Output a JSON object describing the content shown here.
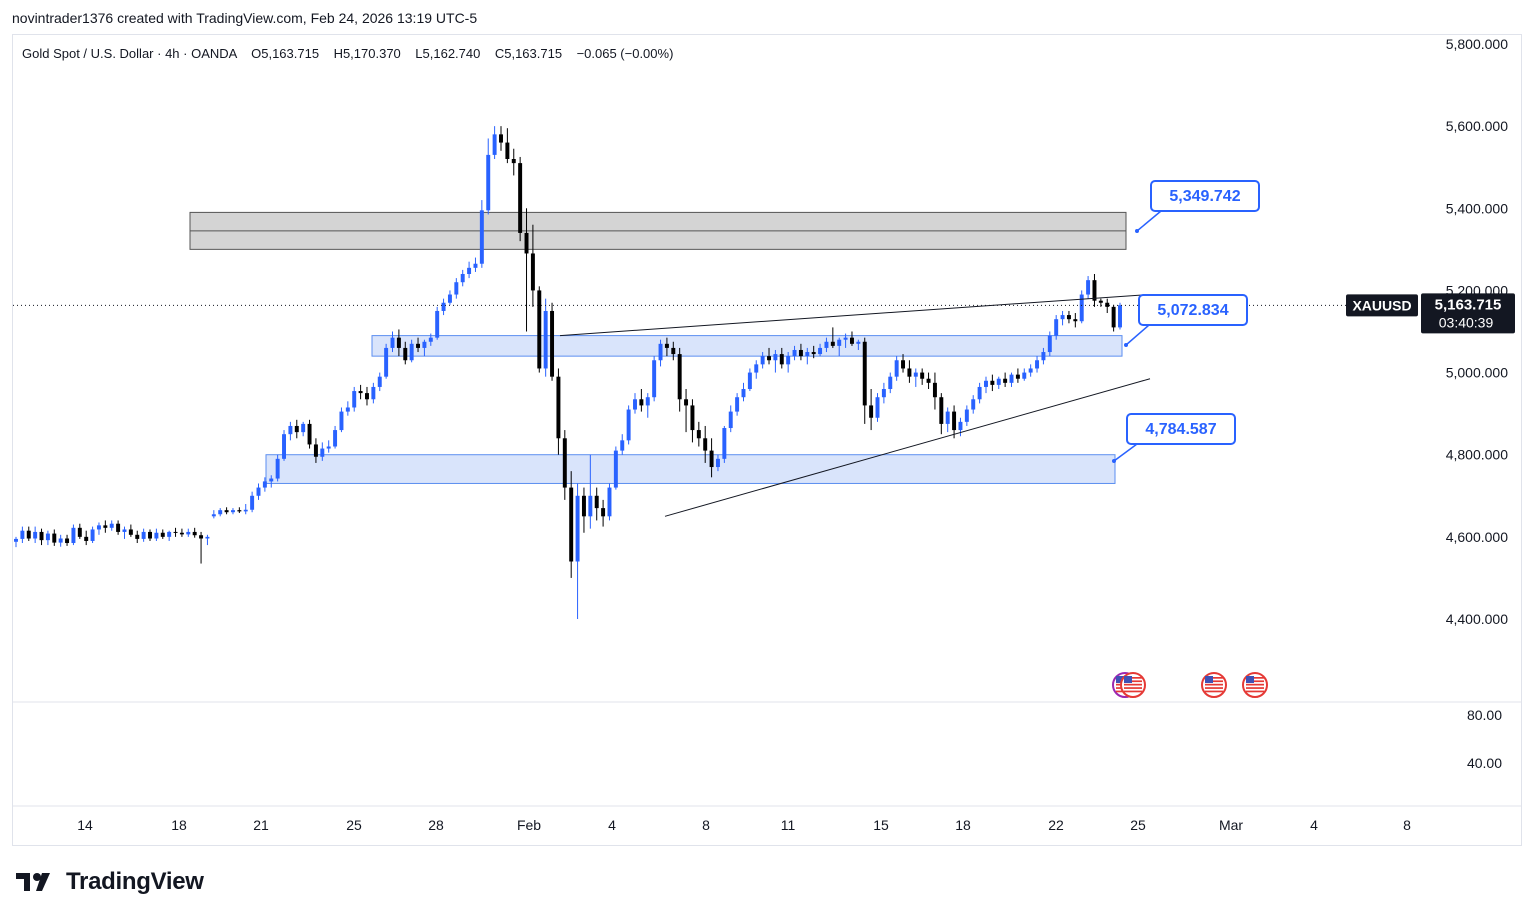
{
  "header": {
    "credit": "novintrader1376 created with TradingView.com, Feb 24, 2026 13:19 UTC-5"
  },
  "legend": {
    "symbol_name": "Gold Spot / U.S. Dollar",
    "interval": "4h",
    "exchange": "OANDA",
    "open": "O5,163.715",
    "high": "H5,170.370",
    "low": "L5,162.740",
    "close": "C5,163.715",
    "change": "−0.065 (−0.00%)"
  },
  "price_axis": {
    "labels": [
      "5,800.000",
      "5,600.000",
      "5,400.000",
      "5,200.000",
      "5,000.000",
      "4,800.000",
      "4,600.000",
      "4,400.000"
    ],
    "ticker": "XAUUSD",
    "last_price": "5,163.715",
    "countdown": "03:40:39"
  },
  "indicator_axis": {
    "labels": [
      "80.00",
      "40.00"
    ]
  },
  "time_axis": {
    "labels": [
      "14",
      "18",
      "21",
      "25",
      "28",
      "Feb",
      "4",
      "8",
      "11",
      "15",
      "18",
      "22",
      "25",
      "Mar",
      "4",
      "8"
    ]
  },
  "annotations": {
    "callouts": [
      "5,349.742",
      "5,072.834",
      "4,784.587"
    ]
  },
  "colors": {
    "up": "#2962ff",
    "down": "#000000",
    "zone_fill": "#d9e4fb",
    "zone_border": "#5b8ef0",
    "resistance_fill": "#d4d4d4",
    "callout_border": "#2962ff",
    "callout_text": "#2962ff"
  },
  "brand": {
    "name": "TradingView"
  },
  "chart_data": {
    "type": "candlestick",
    "symbol": "XAUUSD",
    "interval": "4h",
    "ylim": [
      4300,
      5800
    ],
    "candles": [
      {
        "o": 4588,
        "h": 4600,
        "l": 4575,
        "c": 4595
      },
      {
        "o": 4595,
        "h": 4625,
        "l": 4585,
        "c": 4615
      },
      {
        "o": 4615,
        "h": 4625,
        "l": 4590,
        "c": 4596
      },
      {
        "o": 4596,
        "h": 4625,
        "l": 4585,
        "c": 4612
      },
      {
        "o": 4612,
        "h": 4620,
        "l": 4580,
        "c": 4592
      },
      {
        "o": 4592,
        "h": 4615,
        "l": 4580,
        "c": 4608
      },
      {
        "o": 4608,
        "h": 4618,
        "l": 4578,
        "c": 4586
      },
      {
        "o": 4586,
        "h": 4605,
        "l": 4576,
        "c": 4596
      },
      {
        "o": 4596,
        "h": 4605,
        "l": 4578,
        "c": 4585
      },
      {
        "o": 4585,
        "h": 4630,
        "l": 4580,
        "c": 4622
      },
      {
        "o": 4622,
        "h": 4632,
        "l": 4595,
        "c": 4600
      },
      {
        "o": 4600,
        "h": 4615,
        "l": 4580,
        "c": 4590
      },
      {
        "o": 4590,
        "h": 4625,
        "l": 4585,
        "c": 4618
      },
      {
        "o": 4618,
        "h": 4635,
        "l": 4605,
        "c": 4628
      },
      {
        "o": 4628,
        "h": 4640,
        "l": 4610,
        "c": 4622
      },
      {
        "o": 4622,
        "h": 4640,
        "l": 4615,
        "c": 4632
      },
      {
        "o": 4632,
        "h": 4640,
        "l": 4605,
        "c": 4612
      },
      {
        "o": 4612,
        "h": 4625,
        "l": 4595,
        "c": 4618
      },
      {
        "o": 4618,
        "h": 4630,
        "l": 4600,
        "c": 4605
      },
      {
        "o": 4605,
        "h": 4615,
        "l": 4585,
        "c": 4595
      },
      {
        "o": 4595,
        "h": 4620,
        "l": 4588,
        "c": 4612
      },
      {
        "o": 4612,
        "h": 4618,
        "l": 4590,
        "c": 4596
      },
      {
        "o": 4596,
        "h": 4620,
        "l": 4590,
        "c": 4610
      },
      {
        "o": 4610,
        "h": 4618,
        "l": 4595,
        "c": 4600
      },
      {
        "o": 4600,
        "h": 4615,
        "l": 4590,
        "c": 4612
      },
      {
        "o": 4612,
        "h": 4622,
        "l": 4600,
        "c": 4610
      },
      {
        "o": 4610,
        "h": 4620,
        "l": 4600,
        "c": 4606
      },
      {
        "o": 4606,
        "h": 4620,
        "l": 4600,
        "c": 4612
      },
      {
        "o": 4612,
        "h": 4622,
        "l": 4598,
        "c": 4604
      },
      {
        "o": 4604,
        "h": 4612,
        "l": 4535,
        "c": 4596
      },
      {
        "o": 4596,
        "h": 4605,
        "l": 4580,
        "c": 4600
      },
      {
        "o": 4650,
        "h": 4665,
        "l": 4645,
        "c": 4655
      },
      {
        "o": 4655,
        "h": 4670,
        "l": 4650,
        "c": 4665
      },
      {
        "o": 4665,
        "h": 4672,
        "l": 4655,
        "c": 4660
      },
      {
        "o": 4660,
        "h": 4670,
        "l": 4655,
        "c": 4665
      },
      {
        "o": 4665,
        "h": 4672,
        "l": 4658,
        "c": 4662
      },
      {
        "o": 4662,
        "h": 4680,
        "l": 4655,
        "c": 4666
      },
      {
        "o": 4666,
        "h": 4710,
        "l": 4660,
        "c": 4700
      },
      {
        "o": 4700,
        "h": 4730,
        "l": 4690,
        "c": 4720
      },
      {
        "o": 4720,
        "h": 4745,
        "l": 4710,
        "c": 4735
      },
      {
        "o": 4735,
        "h": 4750,
        "l": 4720,
        "c": 4742
      },
      {
        "o": 4742,
        "h": 4800,
        "l": 4735,
        "c": 4790
      },
      {
        "o": 4790,
        "h": 4860,
        "l": 4785,
        "c": 4850
      },
      {
        "o": 4850,
        "h": 4880,
        "l": 4835,
        "c": 4870
      },
      {
        "o": 4870,
        "h": 4885,
        "l": 4840,
        "c": 4855
      },
      {
        "o": 4855,
        "h": 4880,
        "l": 4845,
        "c": 4875
      },
      {
        "o": 4875,
        "h": 4885,
        "l": 4815,
        "c": 4825
      },
      {
        "o": 4825,
        "h": 4840,
        "l": 4780,
        "c": 4795
      },
      {
        "o": 4795,
        "h": 4830,
        "l": 4785,
        "c": 4815
      },
      {
        "o": 4815,
        "h": 4835,
        "l": 4805,
        "c": 4820
      },
      {
        "o": 4820,
        "h": 4870,
        "l": 4815,
        "c": 4860
      },
      {
        "o": 4860,
        "h": 4915,
        "l": 4855,
        "c": 4905
      },
      {
        "o": 4905,
        "h": 4930,
        "l": 4895,
        "c": 4915
      },
      {
        "o": 4915,
        "h": 4965,
        "l": 4905,
        "c": 4955
      },
      {
        "o": 4955,
        "h": 4970,
        "l": 4935,
        "c": 4950
      },
      {
        "o": 4950,
        "h": 4965,
        "l": 4920,
        "c": 4935
      },
      {
        "o": 4935,
        "h": 4975,
        "l": 4925,
        "c": 4965
      },
      {
        "o": 4965,
        "h": 5000,
        "l": 4955,
        "c": 4990
      },
      {
        "o": 4990,
        "h": 5070,
        "l": 4985,
        "c": 5060
      },
      {
        "o": 5060,
        "h": 5100,
        "l": 5050,
        "c": 5085
      },
      {
        "o": 5085,
        "h": 5105,
        "l": 5040,
        "c": 5060
      },
      {
        "o": 5060,
        "h": 5075,
        "l": 5020,
        "c": 5030
      },
      {
        "o": 5030,
        "h": 5080,
        "l": 5025,
        "c": 5070
      },
      {
        "o": 5070,
        "h": 5085,
        "l": 5050,
        "c": 5060
      },
      {
        "o": 5060,
        "h": 5080,
        "l": 5040,
        "c": 5075
      },
      {
        "o": 5075,
        "h": 5095,
        "l": 5065,
        "c": 5085
      },
      {
        "o": 5085,
        "h": 5160,
        "l": 5080,
        "c": 5150
      },
      {
        "o": 5150,
        "h": 5180,
        "l": 5140,
        "c": 5170
      },
      {
        "o": 5170,
        "h": 5200,
        "l": 5165,
        "c": 5190
      },
      {
        "o": 5190,
        "h": 5230,
        "l": 5180,
        "c": 5220
      },
      {
        "o": 5220,
        "h": 5250,
        "l": 5210,
        "c": 5240
      },
      {
        "o": 5240,
        "h": 5270,
        "l": 5230,
        "c": 5255
      },
      {
        "o": 5255,
        "h": 5280,
        "l": 5245,
        "c": 5265
      },
      {
        "o": 5265,
        "h": 5420,
        "l": 5255,
        "c": 5395
      },
      {
        "o": 5395,
        "h": 5570,
        "l": 5385,
        "c": 5530
      },
      {
        "o": 5530,
        "h": 5600,
        "l": 5520,
        "c": 5580
      },
      {
        "o": 5580,
        "h": 5600,
        "l": 5540,
        "c": 5560
      },
      {
        "o": 5560,
        "h": 5595,
        "l": 5510,
        "c": 5520
      },
      {
        "o": 5520,
        "h": 5545,
        "l": 5480,
        "c": 5510
      },
      {
        "o": 5510,
        "h": 5525,
        "l": 5320,
        "c": 5340
      },
      {
        "o": 5340,
        "h": 5400,
        "l": 5100,
        "c": 5290
      },
      {
        "o": 5290,
        "h": 5360,
        "l": 5160,
        "c": 5200
      },
      {
        "o": 5200,
        "h": 5210,
        "l": 5000,
        "c": 5010
      },
      {
        "o": 5010,
        "h": 5180,
        "l": 4990,
        "c": 5150
      },
      {
        "o": 5150,
        "h": 5170,
        "l": 4980,
        "c": 4990
      },
      {
        "o": 4990,
        "h": 5010,
        "l": 4800,
        "c": 4840
      },
      {
        "o": 4840,
        "h": 4860,
        "l": 4690,
        "c": 4720
      },
      {
        "o": 4720,
        "h": 4760,
        "l": 4500,
        "c": 4540
      },
      {
        "o": 4540,
        "h": 4730,
        "l": 4400,
        "c": 4700
      },
      {
        "o": 4700,
        "h": 4720,
        "l": 4610,
        "c": 4650
      },
      {
        "o": 4650,
        "h": 4800,
        "l": 4620,
        "c": 4700
      },
      {
        "o": 4700,
        "h": 4720,
        "l": 4640,
        "c": 4670
      },
      {
        "o": 4670,
        "h": 4690,
        "l": 4625,
        "c": 4650
      },
      {
        "o": 4650,
        "h": 4730,
        "l": 4640,
        "c": 4720
      },
      {
        "o": 4720,
        "h": 4820,
        "l": 4715,
        "c": 4810
      },
      {
        "o": 4810,
        "h": 4850,
        "l": 4800,
        "c": 4835
      },
      {
        "o": 4835,
        "h": 4920,
        "l": 4825,
        "c": 4910
      },
      {
        "o": 4910,
        "h": 4950,
        "l": 4900,
        "c": 4935
      },
      {
        "o": 4935,
        "h": 4960,
        "l": 4905,
        "c": 4920
      },
      {
        "o": 4920,
        "h": 4950,
        "l": 4890,
        "c": 4940
      },
      {
        "o": 4940,
        "h": 5040,
        "l": 4930,
        "c": 5030
      },
      {
        "o": 5030,
        "h": 5080,
        "l": 5015,
        "c": 5070
      },
      {
        "o": 5070,
        "h": 5085,
        "l": 5040,
        "c": 5060
      },
      {
        "o": 5060,
        "h": 5075,
        "l": 5030,
        "c": 5045
      },
      {
        "o": 5045,
        "h": 5060,
        "l": 4905,
        "c": 4935
      },
      {
        "o": 4935,
        "h": 4960,
        "l": 4855,
        "c": 4920
      },
      {
        "o": 4920,
        "h": 4935,
        "l": 4830,
        "c": 4860
      },
      {
        "o": 4860,
        "h": 4880,
        "l": 4820,
        "c": 4840
      },
      {
        "o": 4840,
        "h": 4870,
        "l": 4780,
        "c": 4810
      },
      {
        "o": 4810,
        "h": 4840,
        "l": 4745,
        "c": 4770
      },
      {
        "o": 4770,
        "h": 4800,
        "l": 4760,
        "c": 4790
      },
      {
        "o": 4790,
        "h": 4870,
        "l": 4780,
        "c": 4865
      },
      {
        "o": 4865,
        "h": 4920,
        "l": 4855,
        "c": 4905
      },
      {
        "o": 4905,
        "h": 4950,
        "l": 4895,
        "c": 4940
      },
      {
        "o": 4940,
        "h": 4975,
        "l": 4930,
        "c": 4960
      },
      {
        "o": 4960,
        "h": 5010,
        "l": 4955,
        "c": 5000
      },
      {
        "o": 5000,
        "h": 5030,
        "l": 4985,
        "c": 5020
      },
      {
        "o": 5020,
        "h": 5050,
        "l": 5010,
        "c": 5040
      },
      {
        "o": 5040,
        "h": 5060,
        "l": 5020,
        "c": 5030
      },
      {
        "o": 5030,
        "h": 5055,
        "l": 5000,
        "c": 5045
      },
      {
        "o": 5045,
        "h": 5060,
        "l": 5010,
        "c": 5020
      },
      {
        "o": 5020,
        "h": 5050,
        "l": 5000,
        "c": 5040
      },
      {
        "o": 5040,
        "h": 5065,
        "l": 5030,
        "c": 5055
      },
      {
        "o": 5055,
        "h": 5070,
        "l": 5030,
        "c": 5040
      },
      {
        "o": 5040,
        "h": 5060,
        "l": 5020,
        "c": 5050
      },
      {
        "o": 5050,
        "h": 5065,
        "l": 5035,
        "c": 5045
      },
      {
        "o": 5045,
        "h": 5070,
        "l": 5040,
        "c": 5060
      },
      {
        "o": 5060,
        "h": 5085,
        "l": 5050,
        "c": 5075
      },
      {
        "o": 5075,
        "h": 5110,
        "l": 5060,
        "c": 5065
      },
      {
        "o": 5065,
        "h": 5085,
        "l": 5040,
        "c": 5080
      },
      {
        "o": 5080,
        "h": 5095,
        "l": 5060,
        "c": 5085
      },
      {
        "o": 5085,
        "h": 5100,
        "l": 5065,
        "c": 5070
      },
      {
        "o": 5070,
        "h": 5080,
        "l": 5055,
        "c": 5075
      },
      {
        "o": 5075,
        "h": 5085,
        "l": 4875,
        "c": 4920
      },
      {
        "o": 4920,
        "h": 4960,
        "l": 4860,
        "c": 4890
      },
      {
        "o": 4890,
        "h": 4950,
        "l": 4880,
        "c": 4940
      },
      {
        "o": 4940,
        "h": 4975,
        "l": 4925,
        "c": 4960
      },
      {
        "o": 4960,
        "h": 5000,
        "l": 4950,
        "c": 4990
      },
      {
        "o": 4990,
        "h": 5040,
        "l": 4980,
        "c": 5030
      },
      {
        "o": 5030,
        "h": 5045,
        "l": 5000,
        "c": 5010
      },
      {
        "o": 5010,
        "h": 5030,
        "l": 4975,
        "c": 4990
      },
      {
        "o": 4990,
        "h": 5010,
        "l": 4965,
        "c": 5000
      },
      {
        "o": 5000,
        "h": 5010,
        "l": 4970,
        "c": 4985
      },
      {
        "o": 4985,
        "h": 5000,
        "l": 4960,
        "c": 4975
      },
      {
        "o": 4975,
        "h": 5000,
        "l": 4910,
        "c": 4940
      },
      {
        "o": 4940,
        "h": 4950,
        "l": 4850,
        "c": 4875
      },
      {
        "o": 4875,
        "h": 4915,
        "l": 4855,
        "c": 4905
      },
      {
        "o": 4905,
        "h": 4920,
        "l": 4840,
        "c": 4860
      },
      {
        "o": 4860,
        "h": 4890,
        "l": 4845,
        "c": 4880
      },
      {
        "o": 4880,
        "h": 4920,
        "l": 4870,
        "c": 4910
      },
      {
        "o": 4910,
        "h": 4945,
        "l": 4900,
        "c": 4935
      },
      {
        "o": 4935,
        "h": 4975,
        "l": 4925,
        "c": 4965
      },
      {
        "o": 4965,
        "h": 4990,
        "l": 4950,
        "c": 4980
      },
      {
        "o": 4980,
        "h": 4995,
        "l": 4955,
        "c": 4970
      },
      {
        "o": 4970,
        "h": 4990,
        "l": 4960,
        "c": 4985
      },
      {
        "o": 4985,
        "h": 5000,
        "l": 4965,
        "c": 4975
      },
      {
        "o": 4975,
        "h": 5000,
        "l": 4965,
        "c": 4995
      },
      {
        "o": 4995,
        "h": 5010,
        "l": 4975,
        "c": 4985
      },
      {
        "o": 4985,
        "h": 5010,
        "l": 4980,
        "c": 5000
      },
      {
        "o": 5000,
        "h": 5020,
        "l": 4990,
        "c": 5010
      },
      {
        "o": 5010,
        "h": 5040,
        "l": 5000,
        "c": 5030
      },
      {
        "o": 5030,
        "h": 5060,
        "l": 5020,
        "c": 5050
      },
      {
        "o": 5050,
        "h": 5100,
        "l": 5040,
        "c": 5090
      },
      {
        "o": 5090,
        "h": 5140,
        "l": 5080,
        "c": 5130
      },
      {
        "o": 5130,
        "h": 5150,
        "l": 5115,
        "c": 5140
      },
      {
        "o": 5140,
        "h": 5150,
        "l": 5120,
        "c": 5130
      },
      {
        "o": 5130,
        "h": 5145,
        "l": 5110,
        "c": 5125
      },
      {
        "o": 5125,
        "h": 5200,
        "l": 5120,
        "c": 5190
      },
      {
        "o": 5190,
        "h": 5235,
        "l": 5180,
        "c": 5225
      },
      {
        "o": 5225,
        "h": 5240,
        "l": 5160,
        "c": 5175
      },
      {
        "o": 5175,
        "h": 5180,
        "l": 5160,
        "c": 5170
      },
      {
        "o": 5170,
        "h": 5180,
        "l": 5145,
        "c": 5160
      },
      {
        "o": 5160,
        "h": 5165,
        "l": 5100,
        "c": 5110
      },
      {
        "o": 5110,
        "h": 5170,
        "l": 5105,
        "c": 5164
      }
    ],
    "zones": [
      {
        "label": "resistance",
        "from": 5300,
        "to": 5390,
        "mid": 5345
      },
      {
        "label": "support-upper",
        "from": 5040,
        "to": 5090
      },
      {
        "label": "support-lower",
        "from": 4730,
        "to": 4800
      }
    ],
    "trendlines": [
      {
        "name": "upper-trendline",
        "from": 5090,
        "to": 5190
      },
      {
        "name": "lower-trendline",
        "from": 4650,
        "to": 4985
      }
    ],
    "price_ticks": [
      5800,
      5600,
      5400,
      5200,
      5000,
      4800,
      4600,
      4400
    ],
    "last": 5163.715
  }
}
